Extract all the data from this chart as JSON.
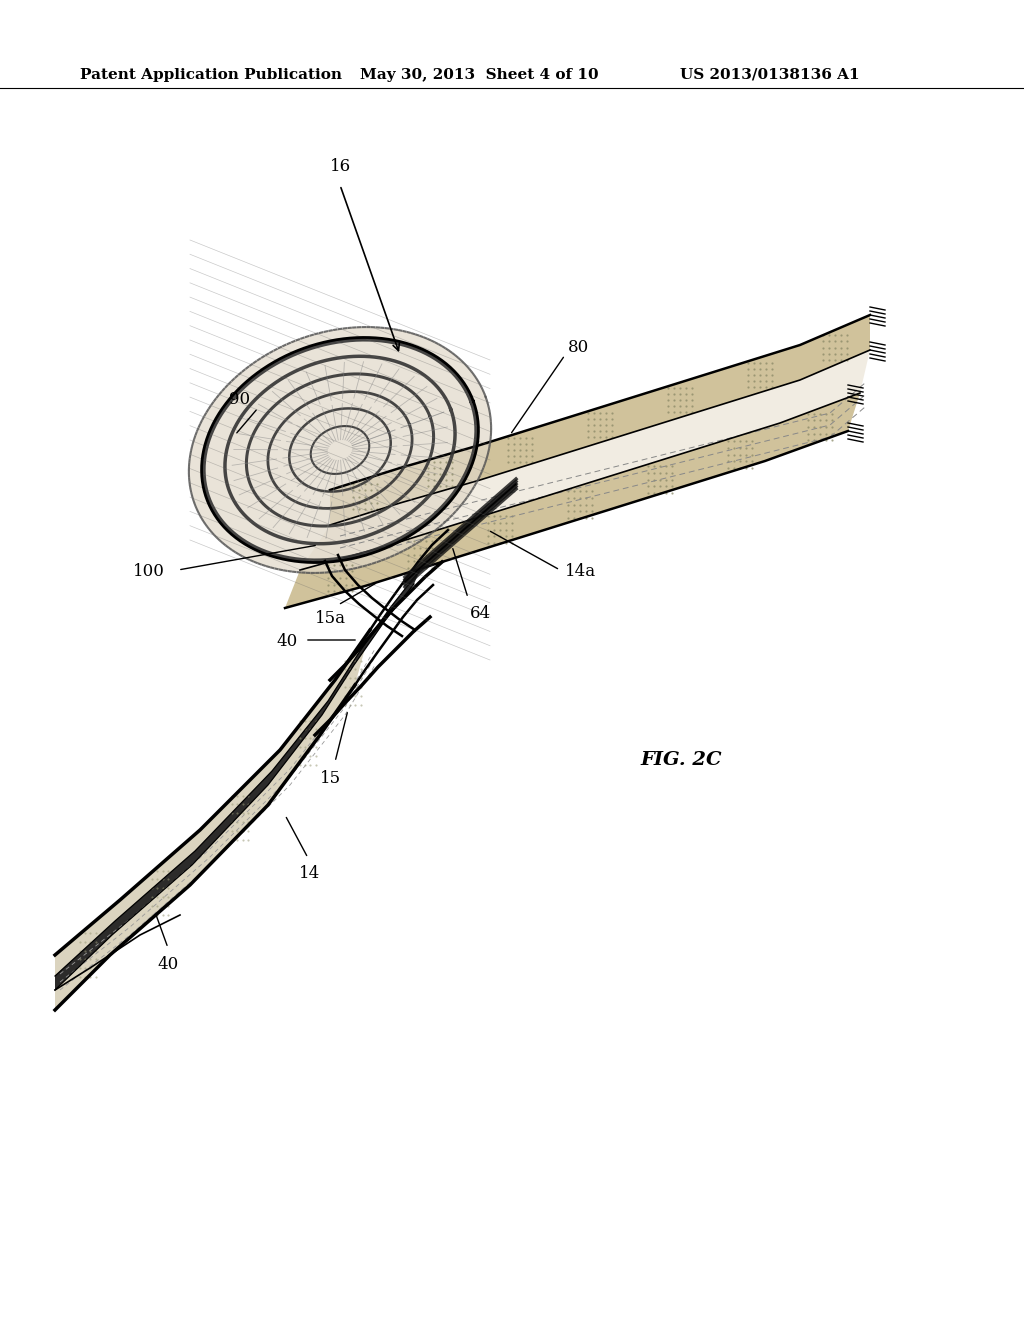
{
  "header_left": "Patent Application Publication",
  "header_mid": "May 30, 2013  Sheet 4 of 10",
  "header_right": "US 2013/0138136 A1",
  "fig_label": "FIG. 2C",
  "bg_color": "#ffffff",
  "line_color": "#000000",
  "text_color": "#000000",
  "header_fontsize": 11,
  "label_fontsize": 12,
  "fig_label_fontsize": 14
}
